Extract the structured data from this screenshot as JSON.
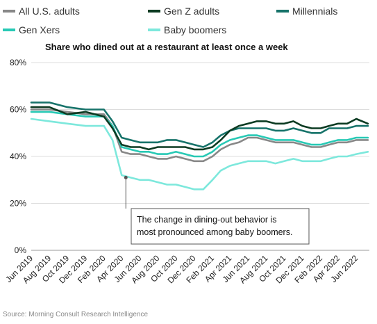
{
  "chart_data": {
    "type": "line",
    "title": "Share who dined out at a restaurant at least once a week",
    "ylim": [
      0,
      80
    ],
    "yticks": [
      "0%",
      "20%",
      "40%",
      "60%",
      "80%"
    ],
    "ytick_values": [
      0,
      20,
      40,
      60,
      80
    ],
    "xlim": [
      "2019-06-01",
      "2022-07-15"
    ],
    "xticks": [
      "Jun 2019",
      "Aug 2019",
      "Oct 2019",
      "Dec 2019",
      "Feb 2020",
      "Apr 2020",
      "Jun 2020",
      "Aug 2020",
      "Oct 2020",
      "Dec 2020",
      "Feb 2021",
      "Apr 2021",
      "Jun 2021",
      "Aug 2021",
      "Oct 2021",
      "Dec 2021",
      "Feb 2022",
      "Apr 2022",
      "Jun 2022"
    ],
    "xtick_dates": [
      "2019-06-01",
      "2019-08-01",
      "2019-10-01",
      "2019-12-01",
      "2020-02-01",
      "2020-04-01",
      "2020-06-01",
      "2020-08-01",
      "2020-10-01",
      "2020-12-01",
      "2021-02-01",
      "2021-04-01",
      "2021-06-01",
      "2021-08-01",
      "2021-10-01",
      "2021-12-01",
      "2022-02-01",
      "2022-04-01",
      "2022-06-01"
    ],
    "grid": "horizontal",
    "legend": "top",
    "series": [
      {
        "name": "All U.S. adults",
        "color": "#888888",
        "x": [
          "2019-06-01",
          "2019-08-01",
          "2019-10-01",
          "2019-12-01",
          "2020-02-01",
          "2020-03-01",
          "2020-04-01",
          "2020-05-01",
          "2020-06-01",
          "2020-07-01",
          "2020-08-01",
          "2020-09-01",
          "2020-10-01",
          "2020-11-01",
          "2020-12-01",
          "2021-01-01",
          "2021-02-01",
          "2021-03-01",
          "2021-04-01",
          "2021-05-01",
          "2021-06-01",
          "2021-07-01",
          "2021-08-01",
          "2021-09-01",
          "2021-10-01",
          "2021-11-01",
          "2021-12-01",
          "2022-01-01",
          "2022-02-01",
          "2022-03-01",
          "2022-04-01",
          "2022-05-01",
          "2022-06-01",
          "2022-07-10"
        ],
        "y": [
          60,
          60,
          59,
          58,
          58,
          53,
          42,
          41,
          41,
          40,
          39,
          39,
          40,
          39,
          38,
          38,
          40,
          43,
          45,
          46,
          48,
          48,
          47,
          46,
          46,
          46,
          45,
          44,
          44,
          45,
          46,
          46,
          47,
          47
        ]
      },
      {
        "name": "Gen Z adults",
        "color": "#0c3b22",
        "x": [
          "2019-06-01",
          "2019-08-01",
          "2019-10-01",
          "2019-12-01",
          "2020-02-01",
          "2020-03-01",
          "2020-04-01",
          "2020-05-01",
          "2020-06-01",
          "2020-07-01",
          "2020-08-01",
          "2020-09-01",
          "2020-10-01",
          "2020-11-01",
          "2020-12-01",
          "2021-01-01",
          "2021-02-01",
          "2021-03-01",
          "2021-04-01",
          "2021-05-01",
          "2021-06-01",
          "2021-07-01",
          "2021-08-01",
          "2021-09-01",
          "2021-10-01",
          "2021-11-01",
          "2021-12-01",
          "2022-01-01",
          "2022-02-01",
          "2022-03-01",
          "2022-04-01",
          "2022-05-01",
          "2022-06-01",
          "2022-07-10"
        ],
        "y": [
          61,
          61,
          58,
          59,
          57,
          52,
          45,
          44,
          44,
          43,
          44,
          44,
          44,
          44,
          43,
          43,
          44,
          47,
          51,
          53,
          54,
          55,
          55,
          54,
          54,
          55,
          53,
          52,
          52,
          53,
          54,
          54,
          56,
          54
        ]
      },
      {
        "name": "Millennials",
        "color": "#17736a",
        "x": [
          "2019-06-01",
          "2019-08-01",
          "2019-10-01",
          "2019-12-01",
          "2020-02-01",
          "2020-03-01",
          "2020-04-01",
          "2020-05-01",
          "2020-06-01",
          "2020-07-01",
          "2020-08-01",
          "2020-09-01",
          "2020-10-01",
          "2020-11-01",
          "2020-12-01",
          "2021-01-01",
          "2021-02-01",
          "2021-03-01",
          "2021-04-01",
          "2021-05-01",
          "2021-06-01",
          "2021-07-01",
          "2021-08-01",
          "2021-09-01",
          "2021-10-01",
          "2021-11-01",
          "2021-12-01",
          "2022-01-01",
          "2022-02-01",
          "2022-03-01",
          "2022-04-01",
          "2022-05-01",
          "2022-06-01",
          "2022-07-10"
        ],
        "y": [
          63,
          63,
          61,
          60,
          60,
          55,
          48,
          47,
          46,
          46,
          46,
          47,
          47,
          46,
          45,
          44,
          46,
          49,
          51,
          52,
          52,
          52,
          52,
          51,
          51,
          52,
          51,
          50,
          50,
          52,
          52,
          52,
          53,
          53
        ]
      },
      {
        "name": "Gen Xers",
        "color": "#28c9b5",
        "x": [
          "2019-06-01",
          "2019-08-01",
          "2019-10-01",
          "2019-12-01",
          "2020-02-01",
          "2020-03-01",
          "2020-04-01",
          "2020-05-01",
          "2020-06-01",
          "2020-07-01",
          "2020-08-01",
          "2020-09-01",
          "2020-10-01",
          "2020-11-01",
          "2020-12-01",
          "2021-01-01",
          "2021-02-01",
          "2021-03-01",
          "2021-04-01",
          "2021-05-01",
          "2021-06-01",
          "2021-07-01",
          "2021-08-01",
          "2021-09-01",
          "2021-10-01",
          "2021-11-01",
          "2021-12-01",
          "2022-01-01",
          "2022-02-01",
          "2022-03-01",
          "2022-04-01",
          "2022-05-01",
          "2022-06-01",
          "2022-07-10"
        ],
        "y": [
          59,
          59,
          58,
          57,
          57,
          53,
          44,
          43,
          42,
          42,
          41,
          41,
          42,
          41,
          40,
          40,
          42,
          45,
          47,
          48,
          49,
          49,
          48,
          47,
          47,
          47,
          46,
          45,
          45,
          46,
          47,
          47,
          48,
          48
        ]
      },
      {
        "name": "Baby boomers",
        "color": "#7de8dc",
        "x": [
          "2019-06-01",
          "2019-08-01",
          "2019-10-01",
          "2019-12-01",
          "2020-02-01",
          "2020-03-01",
          "2020-04-01",
          "2020-05-01",
          "2020-06-01",
          "2020-07-01",
          "2020-08-01",
          "2020-09-01",
          "2020-10-01",
          "2020-11-01",
          "2020-12-01",
          "2021-01-01",
          "2021-02-01",
          "2021-03-01",
          "2021-04-01",
          "2021-05-01",
          "2021-06-01",
          "2021-07-01",
          "2021-08-01",
          "2021-09-01",
          "2021-10-01",
          "2021-11-01",
          "2021-12-01",
          "2022-01-01",
          "2022-02-01",
          "2022-03-01",
          "2022-04-01",
          "2022-05-01",
          "2022-06-01",
          "2022-07-10"
        ],
        "y": [
          56,
          55,
          54,
          53,
          53,
          47,
          32,
          31,
          30,
          30,
          29,
          28,
          28,
          27,
          26,
          26,
          30,
          34,
          36,
          37,
          38,
          38,
          38,
          37,
          38,
          39,
          38,
          38,
          38,
          39,
          40,
          40,
          41,
          42
        ]
      }
    ],
    "annotation": {
      "line1": "The change in dining-out behavior is",
      "line2": "most pronounced among baby boomers.",
      "anchor_x": "2020-04-15",
      "anchor_y": 31
    },
    "source": "Source: Morning Consult Research Intelligence"
  }
}
